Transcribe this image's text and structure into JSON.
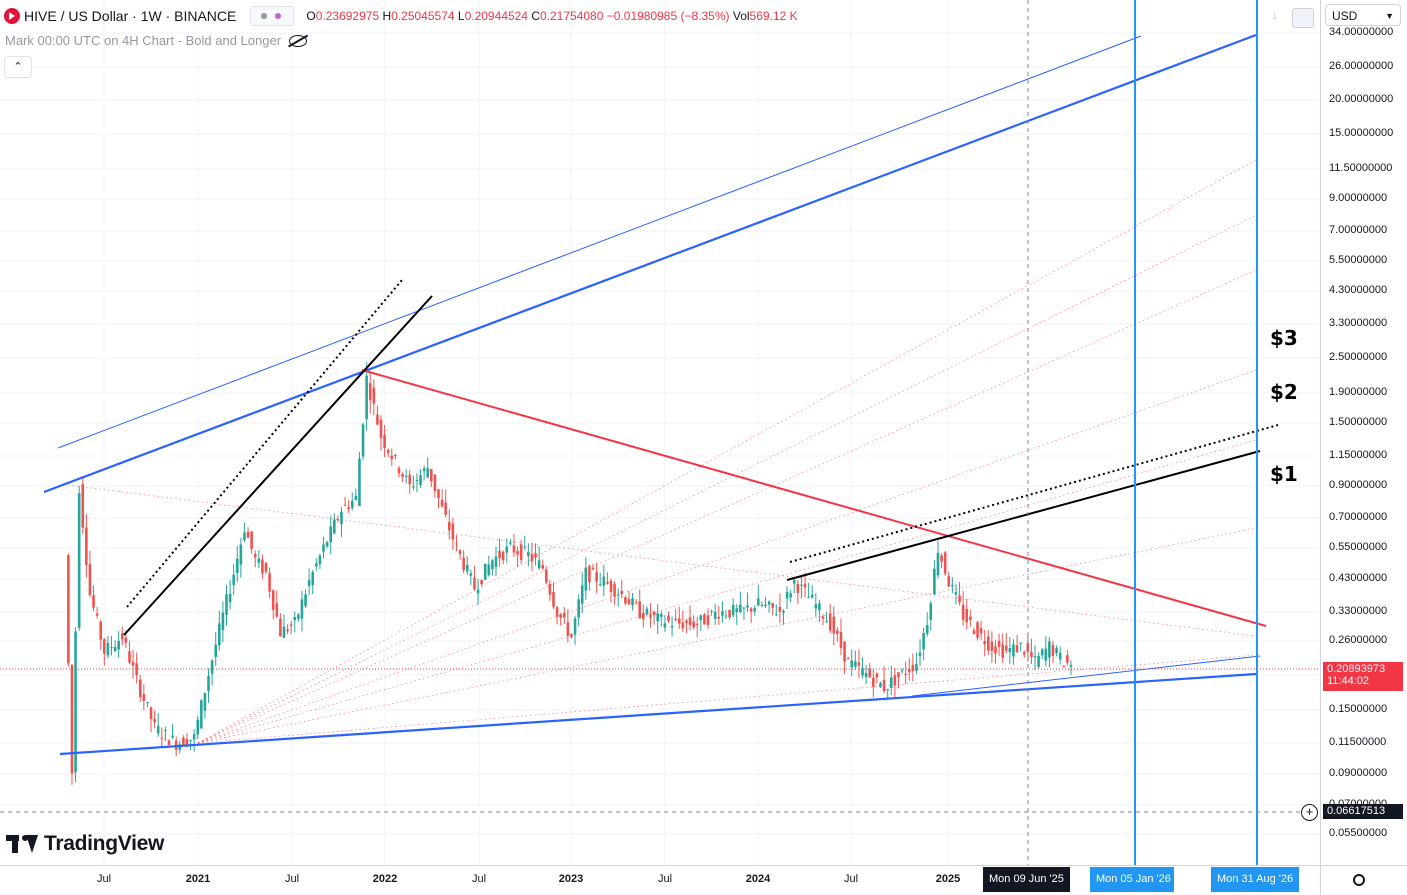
{
  "header": {
    "symbol": "HIVE / US Dollar · 1W · BINANCE",
    "ohlc": {
      "open_label": "O",
      "open": "0.23692975",
      "high_label": "H",
      "high": "0.25045574",
      "low_label": "L",
      "low": "0.20944524",
      "close_label": "C",
      "close": "0.21754080",
      "change": "−0.01980985 (−8.35%)",
      "vol_label": "Vol",
      "vol": "569.12 K"
    },
    "sub_legend": "Mark 00:00 UTC on 4H Chart - Bold and Longer",
    "collapse": "⌃"
  },
  "price_axis": {
    "currency": "USD",
    "ticks": [
      "34.00000000",
      "26.00000000",
      "20.00000000",
      "15.00000000",
      "11.50000000",
      "9.00000000",
      "7.00000000",
      "5.50000000",
      "4.30000000",
      "3.30000000",
      "2.50000000",
      "1.90000000",
      "1.50000000",
      "1.15000000",
      "0.90000000",
      "0.70000000",
      "0.55000000",
      "0.43000000",
      "0.33000000",
      "0.26000000",
      "0.20000000",
      "0.15000000",
      "0.11500000",
      "0.09000000",
      "0.07000000",
      "0.05500000"
    ],
    "current_price": "0.20893973",
    "countdown": "11:44:02",
    "crosshair_price": "0.06617513"
  },
  "time_axis": {
    "ticks": [
      {
        "label": "Jul",
        "bold": false
      },
      {
        "label": "2021",
        "bold": true
      },
      {
        "label": "Jul",
        "bold": false
      },
      {
        "label": "2022",
        "bold": true
      },
      {
        "label": "Jul",
        "bold": false
      },
      {
        "label": "2023",
        "bold": true
      },
      {
        "label": "Jul",
        "bold": false
      },
      {
        "label": "2024",
        "bold": true
      },
      {
        "label": "Jul",
        "bold": false
      },
      {
        "label": "2025",
        "bold": true
      }
    ],
    "crosshair_date": "Mon 09 Jun '25",
    "marker_1": "Mon 05 Jan '26",
    "marker_2": "Mon 31 Aug '26"
  },
  "annotations": {
    "a3": "$3",
    "a2": "$2",
    "a1": "$1"
  },
  "brand": "TradingView",
  "colors": {
    "up": "#26a69a",
    "down": "#ef5350",
    "blue": "#2962ff",
    "red_line": "#f23645",
    "vline": "#2196f3"
  },
  "icons": [
    "hive-icon",
    "eye-off-icon",
    "chevron-up-icon",
    "download-icon",
    "camera-icon",
    "chevron-down-icon",
    "plus-icon",
    "gear-icon",
    "tradingview-logo-icon"
  ],
  "chart_data": {
    "type": "candlestick",
    "scale": "log",
    "ylim": [
      0.05,
      34
    ],
    "x_range": [
      "2020-03",
      "2026-09"
    ],
    "points": [
      [
        "2020-04-20",
        0.52
      ],
      [
        "2020-05-04",
        0.09
      ],
      [
        "2020-05-18",
        0.9
      ],
      [
        "2020-06-08",
        0.38
      ],
      [
        "2020-07-06",
        0.24
      ],
      [
        "2020-08-10",
        0.27
      ],
      [
        "2020-09-07",
        0.19
      ],
      [
        "2020-10-12",
        0.13
      ],
      [
        "2020-11-23",
        0.115
      ],
      [
        "2020-12-28",
        0.12
      ],
      [
        "2021-01-25",
        0.2
      ],
      [
        "2021-02-22",
        0.32
      ],
      [
        "2021-03-15",
        0.45
      ],
      [
        "2021-04-05",
        0.65
      ],
      [
        "2021-04-26",
        0.5
      ],
      [
        "2021-05-17",
        0.45
      ],
      [
        "2021-06-14",
        0.28
      ],
      [
        "2021-07-12",
        0.3
      ],
      [
        "2021-08-09",
        0.42
      ],
      [
        "2021-09-06",
        0.55
      ],
      [
        "2021-10-11",
        0.75
      ],
      [
        "2021-11-08",
        0.82
      ],
      [
        "2021-11-29",
        2.15
      ],
      [
        "2021-12-27",
        1.35
      ],
      [
        "2022-01-24",
        1.1
      ],
      [
        "2022-02-21",
        0.9
      ],
      [
        "2022-03-28",
        1.05
      ],
      [
        "2022-04-25",
        0.75
      ],
      [
        "2022-05-23",
        0.55
      ],
      [
        "2022-06-27",
        0.4
      ],
      [
        "2022-08-01",
        0.5
      ],
      [
        "2022-09-05",
        0.55
      ],
      [
        "2022-10-10",
        0.52
      ],
      [
        "2022-11-07",
        0.47
      ],
      [
        "2022-12-05",
        0.33
      ],
      [
        "2023-01-02",
        0.27
      ],
      [
        "2023-01-30",
        0.45
      ],
      [
        "2023-03-06",
        0.42
      ],
      [
        "2023-04-10",
        0.38
      ],
      [
        "2023-05-15",
        0.33
      ],
      [
        "2023-06-19",
        0.31
      ],
      [
        "2023-07-24",
        0.3
      ],
      [
        "2023-09-04",
        0.3
      ],
      [
        "2023-10-16",
        0.33
      ],
      [
        "2023-11-27",
        0.33
      ],
      [
        "2024-01-01",
        0.35
      ],
      [
        "2024-02-12",
        0.33
      ],
      [
        "2024-03-11",
        0.42
      ],
      [
        "2024-04-15",
        0.36
      ],
      [
        "2024-05-20",
        0.3
      ],
      [
        "2024-06-24",
        0.22
      ],
      [
        "2024-07-29",
        0.2
      ],
      [
        "2024-09-02",
        0.18
      ],
      [
        "2024-10-07",
        0.2
      ],
      [
        "2024-11-04",
        0.22
      ],
      [
        "2024-11-25",
        0.31
      ],
      [
        "2024-12-16",
        0.55
      ],
      [
        "2025-01-06",
        0.42
      ],
      [
        "2025-02-03",
        0.32
      ],
      [
        "2025-03-03",
        0.28
      ],
      [
        "2025-03-31",
        0.25
      ],
      [
        "2025-04-28",
        0.24
      ],
      [
        "2025-05-26",
        0.25
      ],
      [
        "2025-06-23",
        0.22
      ],
      [
        "2025-07-21",
        0.25
      ],
      [
        "2025-08-18",
        0.22
      ],
      [
        "2025-09-01",
        0.2175
      ]
    ]
  }
}
